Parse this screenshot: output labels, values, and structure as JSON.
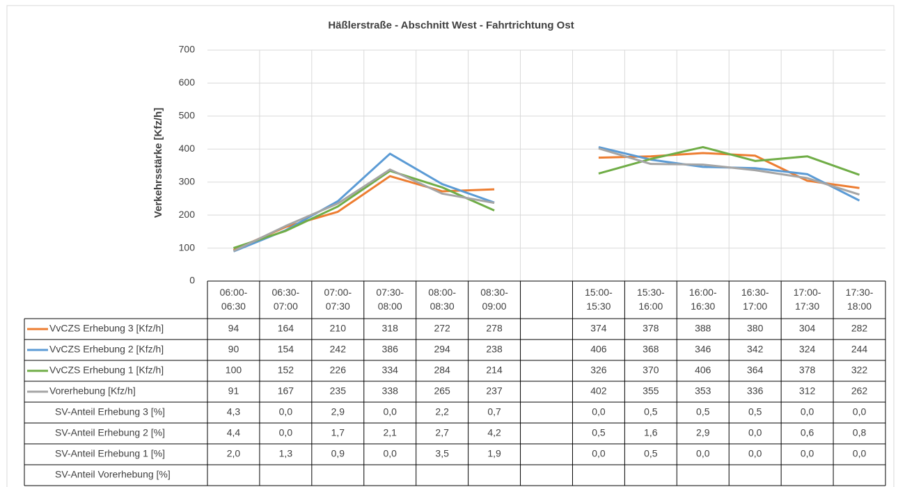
{
  "chart_data": {
    "type": "line",
    "title": "Häßlerstraße - Abschnitt West - Fahrtrichtung Ost",
    "y_label": "Verkehrsstärke [Kfz/h]",
    "categories": [
      "06:00-06:30",
      "06:30-07:00",
      "07:00-07:30",
      "07:30-08:00",
      "08:00-08:30",
      "08:30-09:00",
      null,
      "15:00-15:30",
      "15:30-16:00",
      "16:00-16:30",
      "16:30-17:00",
      "17:00-17:30",
      "17:30-18:00"
    ],
    "series": [
      {
        "name": "VvCZS Erhebung 3 [Kfz/h]",
        "color": "#ed7d31",
        "values": [
          94,
          164,
          210,
          318,
          272,
          278,
          null,
          374,
          378,
          388,
          380,
          304,
          282
        ]
      },
      {
        "name": "VvCZS Erhebung 2 [Kfz/h]",
        "color": "#5b9bd5",
        "values": [
          90,
          154,
          242,
          386,
          294,
          238,
          null,
          406,
          368,
          346,
          342,
          324,
          244
        ]
      },
      {
        "name": "VvCZS Erhebung 1 [Kfz/h]",
        "color": "#70ad47",
        "values": [
          100,
          152,
          226,
          334,
          284,
          214,
          null,
          326,
          370,
          406,
          364,
          378,
          322
        ]
      },
      {
        "name": "Vorerhebung [Kfz/h]",
        "color": "#a5a5a5",
        "values": [
          91,
          167,
          235,
          338,
          265,
          237,
          null,
          402,
          355,
          353,
          336,
          312,
          262
        ]
      }
    ],
    "table_rows": [
      {
        "name": "SV-Anteil Erhebung 3 [%]",
        "values": [
          "4,3",
          "0,0",
          "2,9",
          "0,0",
          "2,2",
          "0,7",
          null,
          "0,0",
          "0,5",
          "0,5",
          "0,5",
          "0,0",
          "0,0"
        ]
      },
      {
        "name": "SV-Anteil Erhebung 2 [%]",
        "values": [
          "4,4",
          "0,0",
          "1,7",
          "2,1",
          "2,7",
          "4,2",
          null,
          "0,5",
          "1,6",
          "2,9",
          "0,0",
          "0,6",
          "0,8"
        ]
      },
      {
        "name": "SV-Anteil Erhebung 1 [%]",
        "values": [
          "2,0",
          "1,3",
          "0,9",
          "0,0",
          "3,5",
          "1,9",
          null,
          "0,0",
          "0,5",
          "0,0",
          "0,0",
          "0,0",
          "0,0"
        ]
      },
      {
        "name": "SV-Anteil Vorerhebung [%]"
      }
    ],
    "ylim": [
      0,
      700
    ],
    "yticks": [
      0,
      100,
      200,
      300,
      400,
      500,
      600,
      700
    ],
    "grid": true
  }
}
